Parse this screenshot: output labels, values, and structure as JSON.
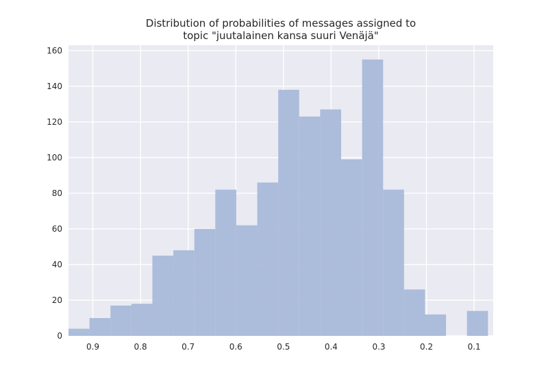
{
  "chart_data": {
    "type": "bar",
    "title_lines": [
      "Distribution of probabilities of messages assigned to",
      "topic \"juutalainen kansa suuri Venäjä\""
    ],
    "xlabel": "",
    "ylabel": "",
    "x_axis_inverted": true,
    "xlim": [
      0.951,
      0.06
    ],
    "ylim": [
      0,
      163
    ],
    "x_ticks": [
      0.9,
      0.8,
      0.7,
      0.6,
      0.5,
      0.4,
      0.3,
      0.2,
      0.1
    ],
    "x_tick_labels": [
      "0.9",
      "0.8",
      "0.7",
      "0.6",
      "0.5",
      "0.4",
      "0.3",
      "0.2",
      "0.1"
    ],
    "y_ticks": [
      0,
      20,
      40,
      60,
      80,
      100,
      120,
      140,
      160
    ],
    "y_tick_labels": [
      "0",
      "20",
      "40",
      "60",
      "80",
      "100",
      "120",
      "140",
      "160"
    ],
    "bin_edges": [
      0.951,
      0.907,
      0.863,
      0.819,
      0.775,
      0.731,
      0.687,
      0.643,
      0.599,
      0.555,
      0.511,
      0.467,
      0.423,
      0.379,
      0.335,
      0.291,
      0.247,
      0.203,
      0.159,
      0.115,
      0.071
    ],
    "values": [
      4,
      10,
      17,
      18,
      45,
      48,
      60,
      82,
      62,
      86,
      138,
      123,
      127,
      99,
      155,
      82,
      26,
      12,
      0,
      14
    ],
    "bar_color": "#a9b9d9",
    "background_color": "#eaeaf2",
    "grid": true,
    "grid_color": "#ffffff"
  }
}
